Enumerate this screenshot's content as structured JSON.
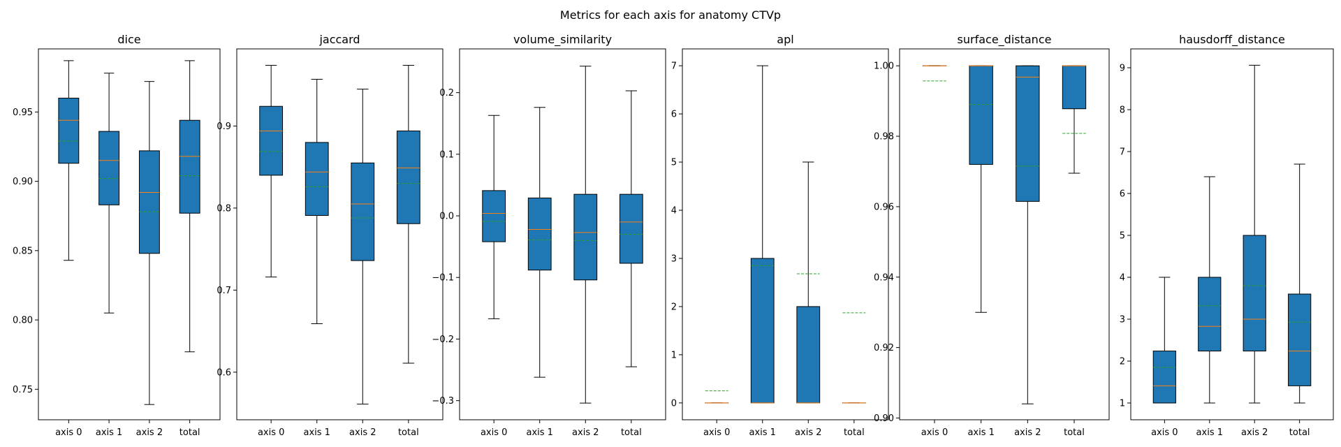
{
  "figure": {
    "title": "Metrics for each axis for anatomy CTVp"
  },
  "colors": {
    "box": "#1f77b4",
    "median": "#ff7f0e",
    "mean": "#2ca02c",
    "edge": "#000000"
  },
  "chart_data": [
    {
      "type": "box",
      "title": "dice",
      "ylim": [
        0.728,
        0.9955
      ],
      "yticks": [
        0.75,
        0.8,
        0.85,
        0.9,
        0.95
      ],
      "yticklabels": [
        "0.75",
        "0.80",
        "0.85",
        "0.90",
        "0.95"
      ],
      "categories": [
        "axis 0",
        "axis 1",
        "axis 2",
        "total"
      ],
      "boxes": [
        {
          "whislo": 0.843,
          "q1": 0.913,
          "med": 0.944,
          "q3": 0.96,
          "whishi": 0.987,
          "mean": 0.929
        },
        {
          "whislo": 0.805,
          "q1": 0.883,
          "med": 0.915,
          "q3": 0.936,
          "whishi": 0.978,
          "mean": 0.902
        },
        {
          "whislo": 0.739,
          "q1": 0.848,
          "med": 0.892,
          "q3": 0.922,
          "whishi": 0.972,
          "mean": 0.878
        },
        {
          "whislo": 0.777,
          "q1": 0.877,
          "med": 0.918,
          "q3": 0.944,
          "whishi": 0.987,
          "mean": 0.904
        }
      ]
    },
    {
      "type": "box",
      "title": "jaccard",
      "ylim": [
        0.542,
        0.994
      ],
      "yticks": [
        0.6,
        0.7,
        0.8,
        0.9
      ],
      "yticklabels": [
        "0.6",
        "0.7",
        "0.8",
        "0.9"
      ],
      "categories": [
        "axis 0",
        "axis 1",
        "axis 2",
        "total"
      ],
      "boxes": [
        {
          "whislo": 0.716,
          "q1": 0.84,
          "med": 0.894,
          "q3": 0.924,
          "whishi": 0.974,
          "mean": 0.869
        },
        {
          "whislo": 0.659,
          "q1": 0.791,
          "med": 0.844,
          "q3": 0.88,
          "whishi": 0.957,
          "mean": 0.826
        },
        {
          "whislo": 0.561,
          "q1": 0.736,
          "med": 0.805,
          "q3": 0.855,
          "whishi": 0.945,
          "mean": 0.788
        },
        {
          "whislo": 0.611,
          "q1": 0.781,
          "med": 0.849,
          "q3": 0.894,
          "whishi": 0.974,
          "mean": 0.83
        }
      ]
    },
    {
      "type": "box",
      "title": "volume_similarity",
      "ylim": [
        -0.331,
        0.271
      ],
      "yticks": [
        -0.3,
        -0.2,
        -0.1,
        0.0,
        0.1,
        0.2
      ],
      "yticklabels": [
        "−0.3",
        "−0.2",
        "−0.1",
        "0.0",
        "0.1",
        "0.2"
      ],
      "categories": [
        "axis 0",
        "axis 1",
        "axis 2",
        "total"
      ],
      "boxes": [
        {
          "whislo": -0.167,
          "q1": -0.042,
          "med": 0.004,
          "q3": 0.041,
          "whishi": 0.163,
          "mean": -0.009
        },
        {
          "whislo": -0.262,
          "q1": -0.088,
          "med": -0.022,
          "q3": 0.029,
          "whishi": 0.176,
          "mean": -0.039
        },
        {
          "whislo": -0.304,
          "q1": -0.104,
          "med": -0.027,
          "q3": 0.035,
          "whishi": 0.243,
          "mean": -0.04
        },
        {
          "whislo": -0.245,
          "q1": -0.077,
          "med": -0.01,
          "q3": 0.035,
          "whishi": 0.203,
          "mean": -0.03
        }
      ]
    },
    {
      "type": "box",
      "title": "apl",
      "ylim": [
        -0.35,
        7.35
      ],
      "yticks": [
        0,
        1,
        2,
        3,
        4,
        5,
        6,
        7
      ],
      "yticklabels": [
        "0",
        "1",
        "2",
        "3",
        "4",
        "5",
        "6",
        "7"
      ],
      "categories": [
        "axis 0",
        "axis 1",
        "axis 2",
        "total"
      ],
      "boxes": [
        {
          "whislo": 0,
          "q1": 0,
          "med": 0,
          "q3": 0,
          "whishi": 0,
          "mean": 0.25
        },
        {
          "whislo": 0,
          "q1": 0,
          "med": 0,
          "q3": 3,
          "whishi": 7,
          "mean": 2.85
        },
        {
          "whislo": 0,
          "q1": 0,
          "med": 0,
          "q3": 2,
          "whishi": 5,
          "mean": 2.68
        },
        {
          "whislo": 0,
          "q1": 0,
          "med": 0,
          "q3": 0,
          "whishi": 0,
          "mean": 1.87
        }
      ]
    },
    {
      "type": "box",
      "title": "surface_distance",
      "ylim": [
        0.8995,
        1.0048
      ],
      "yticks": [
        0.9,
        0.92,
        0.94,
        0.96,
        0.98,
        1.0
      ],
      "yticklabels": [
        "0.90",
        "0.92",
        "0.94",
        "0.96",
        "0.98",
        "1.00"
      ],
      "categories": [
        "axis 0",
        "axis 1",
        "axis 2",
        "total"
      ],
      "boxes": [
        {
          "whislo": 1.0,
          "q1": 1.0,
          "med": 1.0,
          "q3": 1.0,
          "whishi": 1.0,
          "mean": 0.9957
        },
        {
          "whislo": 0.93,
          "q1": 0.972,
          "med": 1.0,
          "q3": 1.0,
          "whishi": 1.0,
          "mean": 0.989
        },
        {
          "whislo": 0.904,
          "q1": 0.9615,
          "med": 0.9968,
          "q3": 1.0,
          "whishi": 1.0,
          "mean": 0.9715
        },
        {
          "whislo": 0.9695,
          "q1": 0.9878,
          "med": 1.0,
          "q3": 1.0,
          "whishi": 1.0,
          "mean": 0.9808
        }
      ]
    },
    {
      "type": "box",
      "title": "hausdorff_distance",
      "ylim": [
        0.6,
        9.45
      ],
      "yticks": [
        1,
        2,
        3,
        4,
        5,
        6,
        7,
        8,
        9
      ],
      "yticklabels": [
        "1",
        "2",
        "3",
        "4",
        "5",
        "6",
        "7",
        "8",
        "9"
      ],
      "categories": [
        "axis 0",
        "axis 1",
        "axis 2",
        "total"
      ],
      "boxes": [
        {
          "whislo": 1.0,
          "q1": 1.0,
          "med": 1.41,
          "q3": 2.24,
          "whishi": 4.0,
          "mean": 1.85
        },
        {
          "whislo": 1.0,
          "q1": 2.24,
          "med": 2.83,
          "q3": 4.0,
          "whishi": 6.4,
          "mean": 3.32
        },
        {
          "whislo": 1.0,
          "q1": 2.24,
          "med": 3.0,
          "q3": 5.0,
          "whishi": 9.06,
          "mean": 3.8
        },
        {
          "whislo": 1.0,
          "q1": 1.41,
          "med": 2.24,
          "q3": 3.6,
          "whishi": 6.7,
          "mean": 2.93
        }
      ]
    }
  ]
}
